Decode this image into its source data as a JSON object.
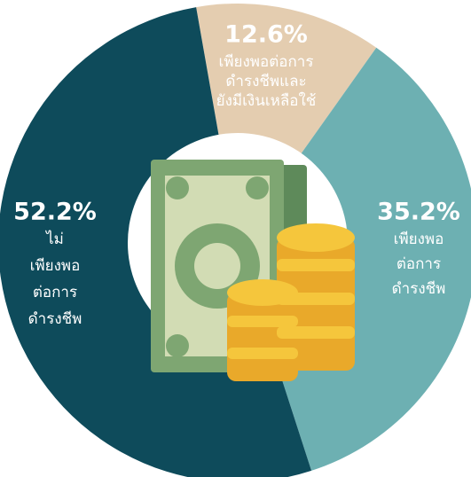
{
  "chart_data": {
    "type": "pie",
    "donut": true,
    "categories": [
      [
        "เพียงพอต่อการ",
        "ดำรงชีพและ",
        "ยังมีเงินเหลือใช้"
      ],
      [
        "เพียงพอ",
        "ต่อการ",
        "ดำรงชีพ"
      ],
      [
        "ไม่",
        "เพียงพอ",
        "ต่อการ",
        "ดำรงชีพ"
      ]
    ],
    "values": [
      12.6,
      35.2,
      52.2
    ],
    "value_labels": [
      "12.6%",
      "35.2%",
      "52.2%"
    ],
    "colors": [
      "#e4cdb0",
      "#6db0b2",
      "#0e4b5b"
    ]
  }
}
